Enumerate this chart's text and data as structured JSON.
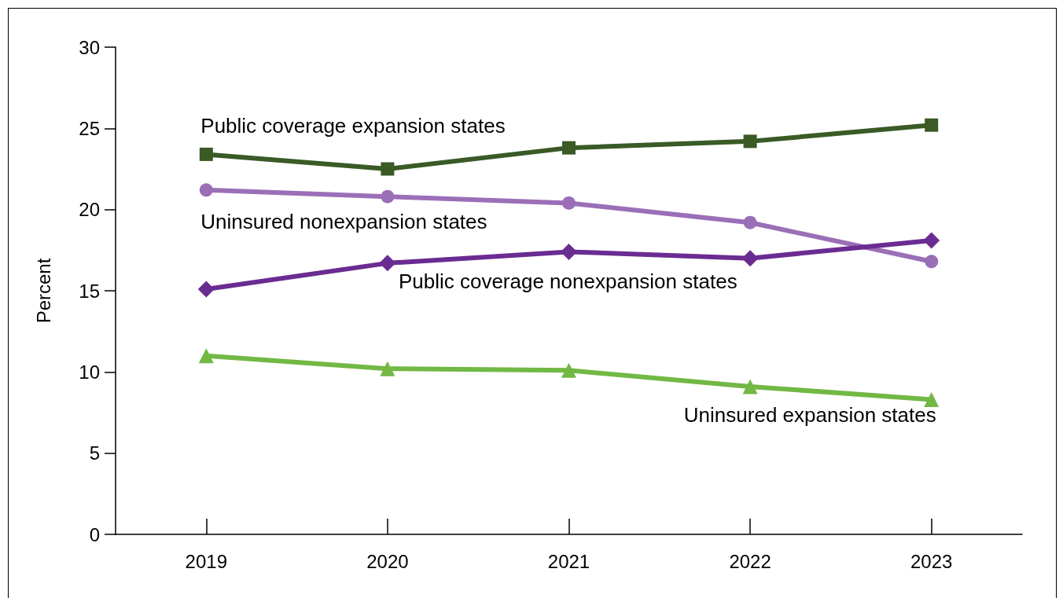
{
  "chart_data": {
    "type": "line",
    "ylabel": "Percent",
    "categories": [
      "2019",
      "2020",
      "2021",
      "2022",
      "2023"
    ],
    "ylim": [
      0,
      30
    ],
    "yticks": [
      0,
      5,
      10,
      15,
      20,
      25,
      30
    ],
    "grid": false,
    "legend": false,
    "line_style": "solid",
    "series": [
      {
        "name": "Public coverage expansion states",
        "color": "#3a5a26",
        "marker": "square",
        "values": [
          23.4,
          22.5,
          23.8,
          24.2,
          25.2
        ]
      },
      {
        "name": "Uninsured nonexpansion states",
        "color": "#9b6fb8",
        "marker": "circle",
        "values": [
          21.2,
          20.8,
          20.4,
          19.2,
          16.8
        ]
      },
      {
        "name": "Public coverage nonexpansion states",
        "color": "#6a2c91",
        "marker": "diamond",
        "values": [
          15.1,
          16.7,
          17.4,
          17.0,
          18.1
        ]
      },
      {
        "name": "Uninsured expansion states",
        "color": "#72b844",
        "marker": "triangle",
        "values": [
          11.0,
          10.2,
          10.1,
          9.1,
          8.3
        ]
      }
    ]
  }
}
